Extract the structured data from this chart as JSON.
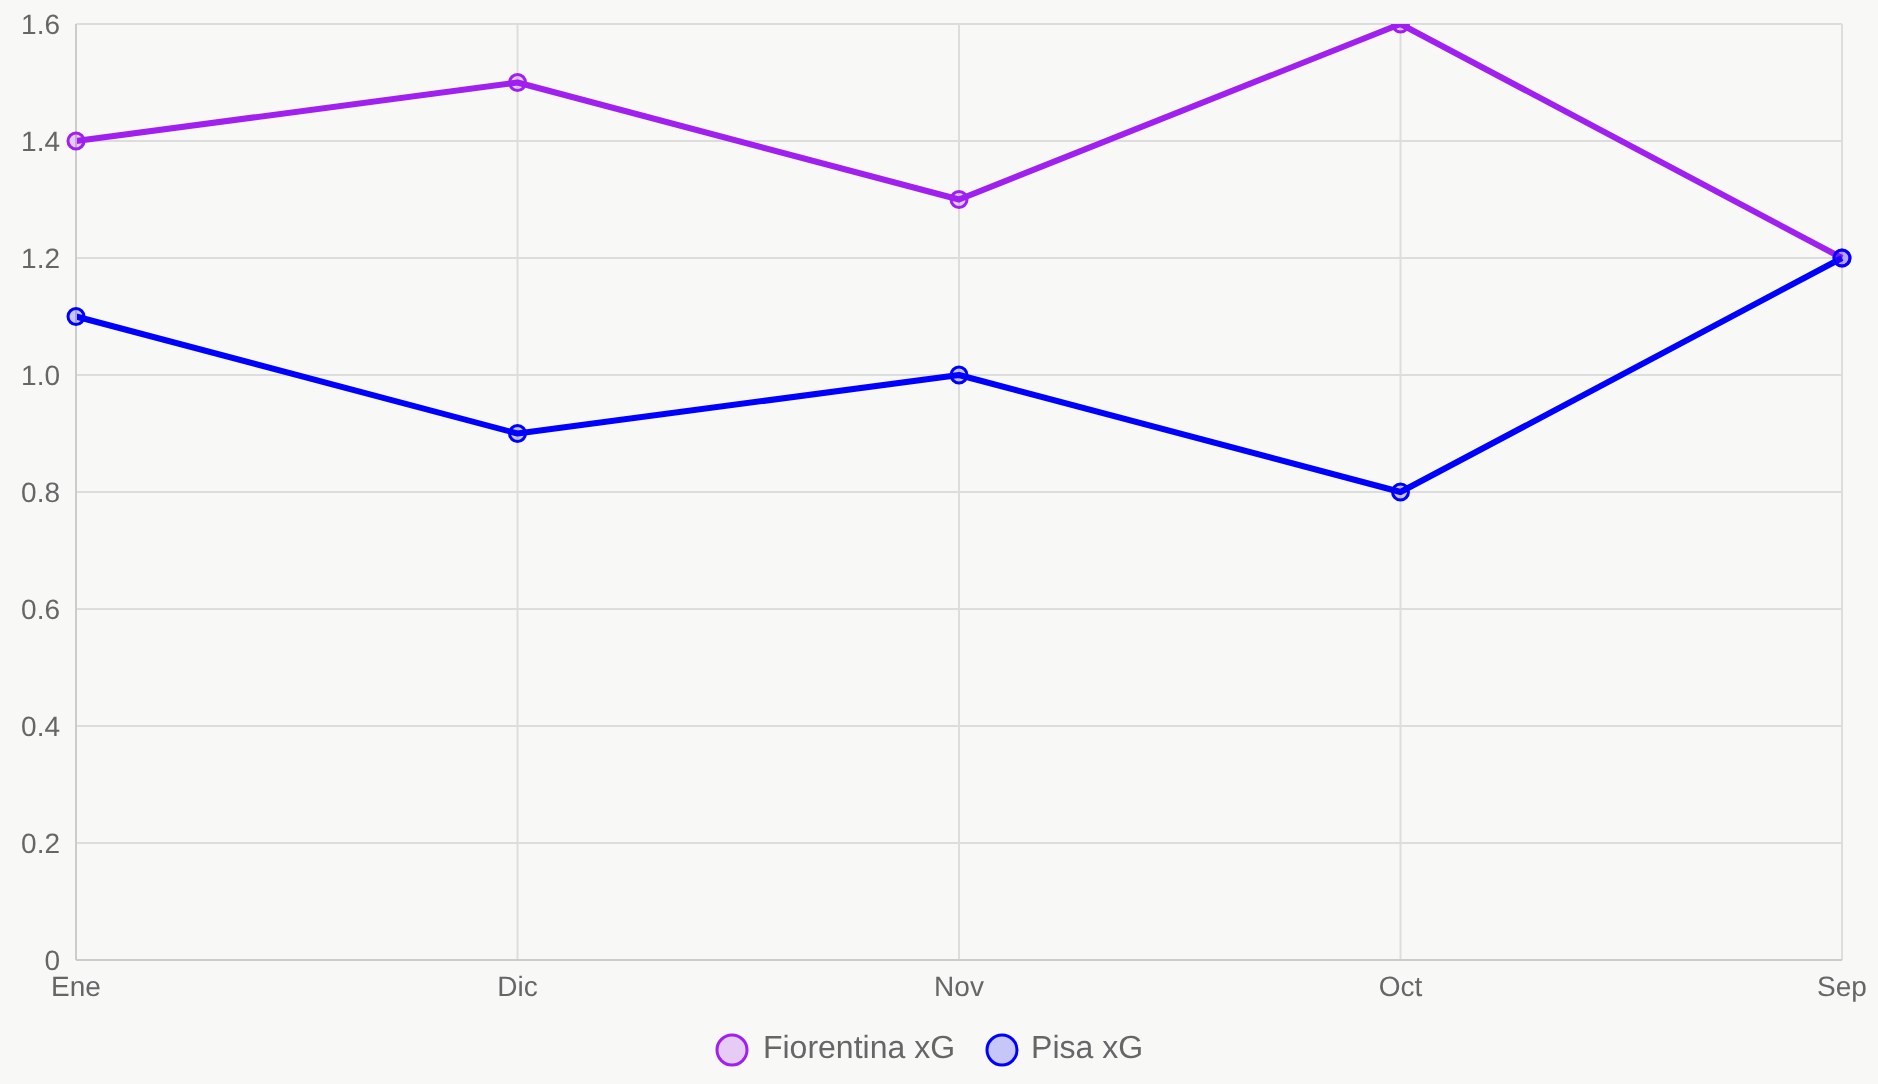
{
  "chart_data": {
    "type": "line",
    "categories": [
      "Ene",
      "Dic",
      "Nov",
      "Oct",
      "Sep"
    ],
    "series": [
      {
        "name": "Fiorentina xG",
        "color": "#a020f0",
        "values": [
          1.4,
          1.5,
          1.3,
          1.6,
          1.2
        ]
      },
      {
        "name": "Pisa xG",
        "color": "#0000ff",
        "values": [
          1.1,
          0.9,
          1.0,
          0.8,
          1.2
        ]
      }
    ],
    "ylim": [
      0,
      1.6
    ],
    "yticks": [
      0,
      {
        "value": 0.2,
        "label": "0.2"
      },
      {
        "value": 0.4,
        "label": "0.4"
      },
      {
        "value": 0.6,
        "label": "0.6"
      },
      {
        "value": 0.8,
        "label": "0.8"
      },
      {
        "value": 1,
        "label": "1.0"
      },
      {
        "value": 1.2,
        "label": "1.2"
      },
      {
        "value": 1.4,
        "label": "1.4"
      },
      {
        "value": 1.6,
        "label": "1.6"
      }
    ],
    "grid": true,
    "legend": "bottom",
    "marker": "circle",
    "line_style": "solid"
  }
}
